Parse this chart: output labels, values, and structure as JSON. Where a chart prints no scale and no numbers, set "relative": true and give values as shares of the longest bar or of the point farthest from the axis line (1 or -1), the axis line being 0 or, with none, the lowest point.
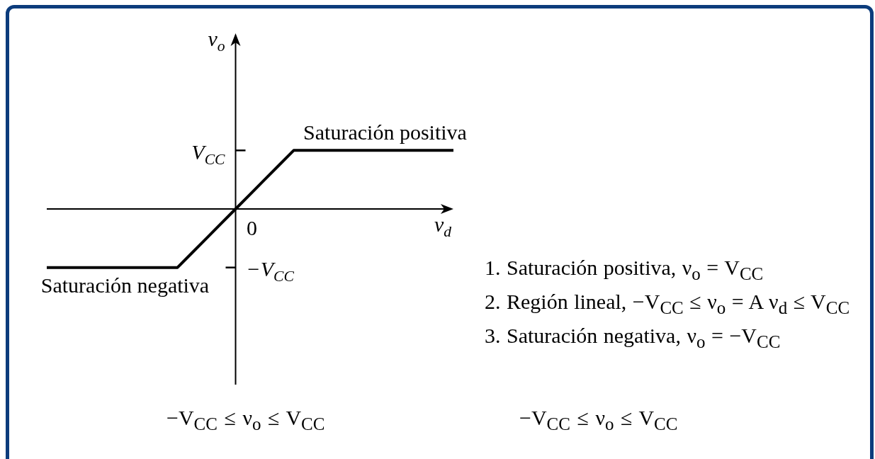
{
  "chart_data": {
    "type": "line",
    "relative": true,
    "categories": [
      null,
      null,
      null,
      null,
      null,
      null,
      null,
      null,
      null,
      null,
      null,
      null,
      null,
      null,
      null,
      null,
      null,
      null,
      null,
      null,
      null,
      null,
      null,
      null,
      null,
      null,
      null,
      null,
      null
    ],
    "values": [
      -1,
      -1,
      -1,
      -1,
      -1,
      -1,
      -1,
      -1,
      -1,
      -1,
      -0.75,
      -0.5,
      -0.25,
      0,
      0.25,
      0.5,
      0.75,
      1,
      1,
      1,
      1,
      1,
      1,
      1,
      1,
      1,
      1,
      1,
      1
    ],
    "color": "#000000",
    "xlabel": "v$_{d}$",
    "ylabel": "v$_{o}$",
    "annotations": [
      "Saturación positiva",
      "V$_{CC}$",
      "0",
      "−V$_{CC}$",
      "Saturación negativa",
      "1. Saturación positiva, ν$_{o}$ = V$_{CC}$",
      "2. Región lineal, −V$_{CC}$ ≤ ν$_{o}$ = A ν$_{d}$ ≤ V$_{CC}$",
      "3. Saturación negativa, ν$_{o}$ = −V$_{CC}$",
      "−V$_{CC}$ ≤ ν$_{o}$ ≤ V$_{CC}$",
      "−V$_{CC}$ ≤ ν$_{o}$ ≤ V$_{CC}$"
    ]
  }
}
